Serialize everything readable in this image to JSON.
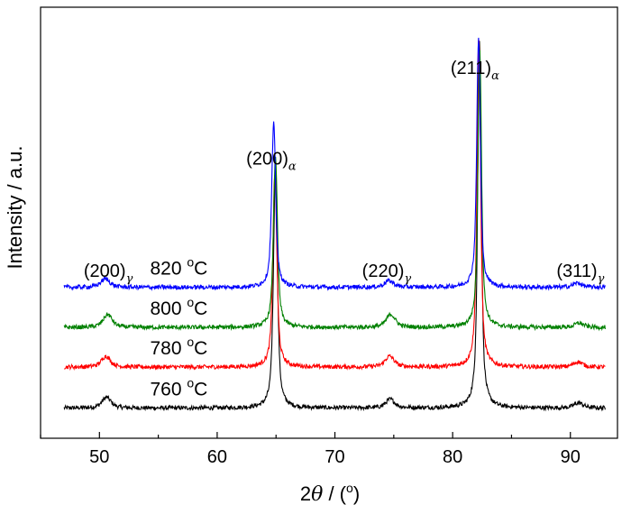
{
  "chart_data": {
    "type": "line",
    "xlabel": {
      "prefix": "2",
      "theta": "θ",
      "mid": " / (",
      "deg": "o",
      "suffix": ")"
    },
    "ylabel": "Intensity / a.u.",
    "xlim": [
      45,
      94
    ],
    "ylim": [
      0,
      1
    ],
    "xticks": [
      50,
      60,
      70,
      80,
      90
    ],
    "peaks": [
      {
        "label": "(200)",
        "sub": "γ",
        "x": 50.6
      },
      {
        "label": "(200)",
        "sub": "α",
        "x": 64.9
      },
      {
        "label": "(220)",
        "sub": "γ",
        "x": 74.7
      },
      {
        "label": "(211)",
        "sub": "α",
        "x": 82.2
      },
      {
        "label": "(311)",
        "sub": "γ",
        "x": 90.7
      }
    ],
    "series": [
      {
        "name": "760 °C",
        "temp": "760 ",
        "deg": "o",
        "unit": "C",
        "color": "#000000",
        "baseline": 0.07,
        "peak_shift": 0.08,
        "peaks": [
          [
            50.6,
            0.025,
            0.5
          ],
          [
            64.95,
            0.55,
            0.22
          ],
          [
            74.7,
            0.02,
            0.5
          ],
          [
            82.28,
            0.85,
            0.2
          ],
          [
            90.7,
            0.012,
            0.5
          ]
        ]
      },
      {
        "name": "780 °C",
        "temp": "780 ",
        "deg": "o",
        "unit": "C",
        "color": "#ff0000",
        "baseline": 0.165,
        "peak_shift": 0.0,
        "peaks": [
          [
            50.55,
            0.025,
            0.5
          ],
          [
            64.9,
            0.45,
            0.22
          ],
          [
            74.65,
            0.025,
            0.5
          ],
          [
            82.22,
            0.76,
            0.2
          ],
          [
            90.65,
            0.012,
            0.5
          ]
        ]
      },
      {
        "name": "800 °C",
        "temp": "800 ",
        "deg": "o",
        "unit": "C",
        "color": "#008000",
        "baseline": 0.257,
        "peak_shift": 0.05,
        "peaks": [
          [
            50.7,
            0.03,
            0.5
          ],
          [
            64.95,
            0.4,
            0.22
          ],
          [
            74.75,
            0.03,
            0.5
          ],
          [
            82.3,
            0.65,
            0.2
          ],
          [
            90.75,
            0.01,
            0.5
          ]
        ]
      },
      {
        "name": "820 °C",
        "temp": "820 ",
        "deg": "o",
        "unit": "C",
        "color": "#0000ff",
        "baseline": 0.35,
        "peak_shift": -0.05,
        "peaks": [
          [
            50.5,
            0.02,
            0.5
          ],
          [
            64.8,
            0.38,
            0.22
          ],
          [
            74.6,
            0.015,
            0.5
          ],
          [
            82.2,
            0.58,
            0.2
          ],
          [
            90.6,
            0.01,
            0.5
          ]
        ]
      }
    ],
    "x_range": [
      47,
      93
    ],
    "grid": false,
    "legend": "inline"
  }
}
